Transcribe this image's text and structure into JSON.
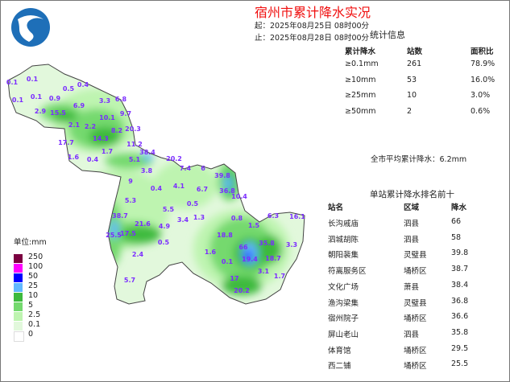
{
  "header": {
    "title": "宿州市累计降水实况",
    "start": "起：2025年08月25日 08时00分",
    "end": "止：2025年08月28日 08时00分"
  },
  "stats": {
    "title": "统计信息",
    "columns": [
      "累计降水",
      "站数",
      "面积比"
    ],
    "rows": [
      [
        "≥0.1mm",
        "261",
        "78.9%"
      ],
      [
        "≥10mm",
        "53",
        "16.0%"
      ],
      [
        "≥25mm",
        "10",
        "3.0%"
      ],
      [
        "≥50mm",
        "2",
        "0.6%"
      ]
    ],
    "average": "全市平均累计降水：6.2mm"
  },
  "ranking": {
    "title": "单站累计降水排名前十",
    "columns": [
      "站名",
      "区域",
      "降水"
    ],
    "rows": [
      [
        "长沟戚庙",
        "泗县",
        "66"
      ],
      [
        "泗城胡陈",
        "泗县",
        "58"
      ],
      [
        "朝阳裴集",
        "灵璧县",
        "39.8"
      ],
      [
        "符离服务区",
        "埇桥区",
        "38.7"
      ],
      [
        "文化广场",
        "萧县",
        "38.4"
      ],
      [
        "渔沟梁集",
        "灵璧县",
        "36.8"
      ],
      [
        "宿州院子",
        "埇桥区",
        "36.6"
      ],
      [
        "屏山老山",
        "泗县",
        "35.8"
      ],
      [
        "体育馆",
        "埇桥区",
        "29.5"
      ],
      [
        "西二铺",
        "埇桥区",
        "25.5"
      ]
    ]
  },
  "legend": {
    "unit": "单位:mm",
    "items": [
      {
        "label": "250",
        "color": "#7b0040"
      },
      {
        "label": "100",
        "color": "#ff00ff"
      },
      {
        "label": "50",
        "color": "#0000ff"
      },
      {
        "label": "25",
        "color": "#61b8ff"
      },
      {
        "label": "10",
        "color": "#3dba3d"
      },
      {
        "label": "5",
        "color": "#74d96e"
      },
      {
        "label": "2.5",
        "color": "#bef4b0"
      },
      {
        "label": "0.1",
        "color": "#e2f8dc"
      },
      {
        "label": "0",
        "color": "#ffffff"
      }
    ]
  },
  "map": {
    "logo": "weather-logo",
    "station_values": [
      "0.1",
      "0.1",
      "0.5",
      "0.4",
      "0.1",
      "0.1",
      "0.9",
      "3.3",
      "6.8",
      "2.9",
      "15.5",
      "6.9",
      "9.7",
      "10.1",
      "2.1",
      "2.2",
      "8.2",
      "20.3",
      "14.3",
      "17.7",
      "11.2",
      "1.7",
      "38.4",
      "1.6",
      "0.4",
      "5.1",
      "3.8",
      "20.2",
      "7.4",
      "6",
      "39.8",
      "9",
      "0.4",
      "4.1",
      "6.7",
      "36.8",
      "10.4",
      "5.3",
      "5.5",
      "0.5",
      "38.7",
      "1.3",
      "3.4",
      "0.8",
      "21.6",
      "4.9",
      "1.5",
      "25.5",
      "17.5",
      "18.8",
      "0.5",
      "1.6",
      "2.4",
      "66",
      "6.3",
      "16.1",
      "35.8",
      "3.3",
      "19.4",
      "18.7",
      "0.1",
      "3.1",
      "1.7",
      "17",
      "20.2",
      "5.7"
    ]
  }
}
